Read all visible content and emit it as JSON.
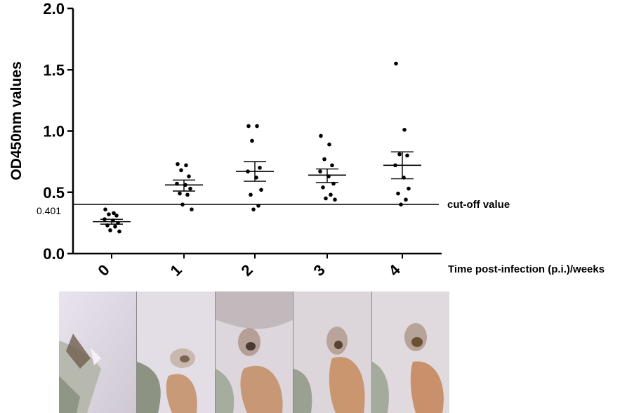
{
  "chart_data": {
    "type": "scatter",
    "ylabel": "OD450nm values",
    "xlabel": "Time post-infection (p.i.)/weeks",
    "categories": [
      "0",
      "1",
      "2",
      "3",
      "4"
    ],
    "ylim": [
      0.0,
      2.0
    ],
    "yticks": [
      "0.0",
      "0.5",
      "1.0",
      "1.5",
      "2.0"
    ],
    "cutoff": {
      "value": 0.401,
      "value_label": "0.401",
      "label": "cut-off value"
    },
    "groups": [
      {
        "week": "0",
        "mean": 0.26,
        "sem_low": 0.24,
        "sem_high": 0.28,
        "points": [
          0.36,
          0.33,
          0.32,
          0.31,
          0.28,
          0.27,
          0.25,
          0.23,
          0.22,
          0.19,
          0.18
        ]
      },
      {
        "week": "1",
        "mean": 0.56,
        "sem_low": 0.51,
        "sem_high": 0.6,
        "points": [
          0.73,
          0.72,
          0.68,
          0.63,
          0.57,
          0.56,
          0.53,
          0.49,
          0.48,
          0.4,
          0.36
        ]
      },
      {
        "week": "2",
        "mean": 0.67,
        "sem_low": 0.59,
        "sem_high": 0.75,
        "points": [
          1.04,
          1.04,
          0.92,
          0.7,
          0.67,
          0.62,
          0.52,
          0.48,
          0.39,
          0.36
        ]
      },
      {
        "week": "3",
        "mean": 0.64,
        "sem_low": 0.58,
        "sem_high": 0.69,
        "points": [
          0.96,
          0.89,
          0.77,
          0.72,
          0.67,
          0.63,
          0.57,
          0.54,
          0.48,
          0.45,
          0.44
        ]
      },
      {
        "week": "4",
        "mean": 0.72,
        "sem_low": 0.61,
        "sem_high": 0.83,
        "points": [
          1.55,
          1.01,
          0.81,
          0.8,
          0.72,
          0.62,
          0.53,
          0.49,
          0.44,
          0.4
        ]
      }
    ],
    "grid": false,
    "legend": "none"
  },
  "photos": [
    {
      "label": "week-0-photo"
    },
    {
      "label": "week-1-photo"
    },
    {
      "label": "week-2-photo"
    },
    {
      "label": "week-3-photo"
    },
    {
      "label": "week-4-photo"
    }
  ]
}
